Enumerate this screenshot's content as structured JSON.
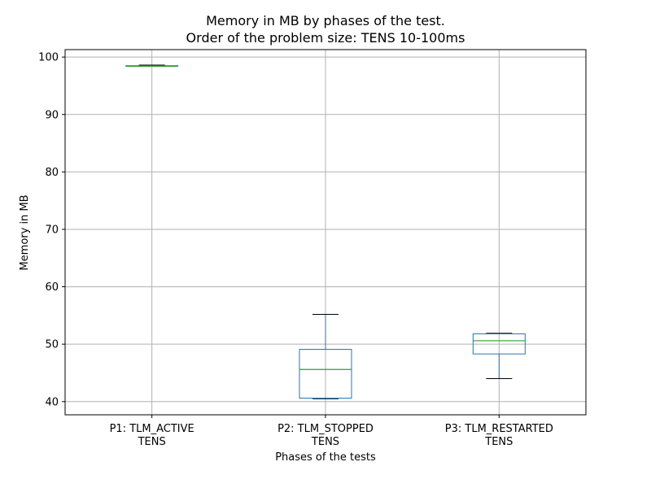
{
  "chart_data": {
    "type": "box",
    "title_lines": [
      "Memory in MB by phases of the test.",
      "Order of the problem size: TENS 10-100ms"
    ],
    "xlabel": "Phases of the tests",
    "ylabel": "Memory in MB",
    "ylim": [
      37.7,
      101.3
    ],
    "yticks": [
      40,
      50,
      60,
      70,
      80,
      90,
      100
    ],
    "grid": true,
    "categories": [
      [
        "P1: TLM_ACTIVE",
        "TENS"
      ],
      [
        "P2: TLM_STOPPED",
        "TENS"
      ],
      [
        "P3: TLM_RESTARTED",
        "TENS"
      ]
    ],
    "boxes": [
      {
        "whisker_low": 98.4,
        "q1": 98.4,
        "median": 98.4,
        "q3": 98.5,
        "whisker_high": 98.6
      },
      {
        "whisker_low": 40.5,
        "q1": 40.6,
        "median": 45.6,
        "q3": 49.1,
        "whisker_high": 55.2
      },
      {
        "whisker_low": 44.0,
        "q1": 48.3,
        "median": 50.6,
        "q3": 51.8,
        "whisker_high": 51.9
      }
    ],
    "colors": {
      "box": "#1f77b4",
      "median": "#2ca02c",
      "whisker_cap": "#000000",
      "grid": "#b0b0b0",
      "axes": "#000000"
    }
  }
}
